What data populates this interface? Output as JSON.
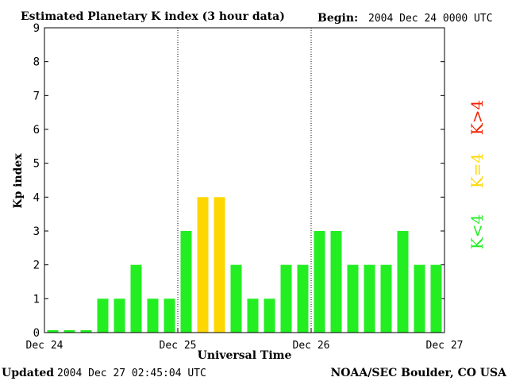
{
  "header": {
    "title": "Estimated Planetary K index (3 hour data)",
    "begin_label": "Begin:",
    "begin_value": "2004 Dec 24 0000 UTC"
  },
  "footer": {
    "updated_label": "Updated",
    "updated_value": "2004 Dec 27 02:45:04 UTC",
    "credit": "NOAA/SEC Boulder, CO USA"
  },
  "legend": {
    "low": "K<4",
    "eq": "K=4",
    "high": "K>4"
  },
  "colors": {
    "low": "#22ee22",
    "eq": "#ffd700",
    "high": "#ee2200"
  },
  "chart_data": {
    "type": "bar",
    "title": "Estimated Planetary K index (3 hour data)",
    "xlabel": "Universal Time",
    "ylabel": "Kp index",
    "ylim": [
      0,
      9
    ],
    "yticks": [
      "0",
      "1",
      "2",
      "3",
      "4",
      "5",
      "6",
      "7",
      "8",
      "9"
    ],
    "xticks": [
      "Dec 24",
      "Dec 25",
      "Dec 26",
      "Dec 27"
    ],
    "day_separators": [
      "Dec 25",
      "Dec 26"
    ],
    "interval_hours": 3,
    "values": [
      0.05,
      0.05,
      0.05,
      1,
      1,
      2,
      1,
      1,
      3,
      4,
      4,
      2,
      1,
      1,
      2,
      2,
      3,
      3,
      2,
      2,
      2,
      3,
      2,
      2
    ],
    "grid": false,
    "legend_position": "right"
  }
}
